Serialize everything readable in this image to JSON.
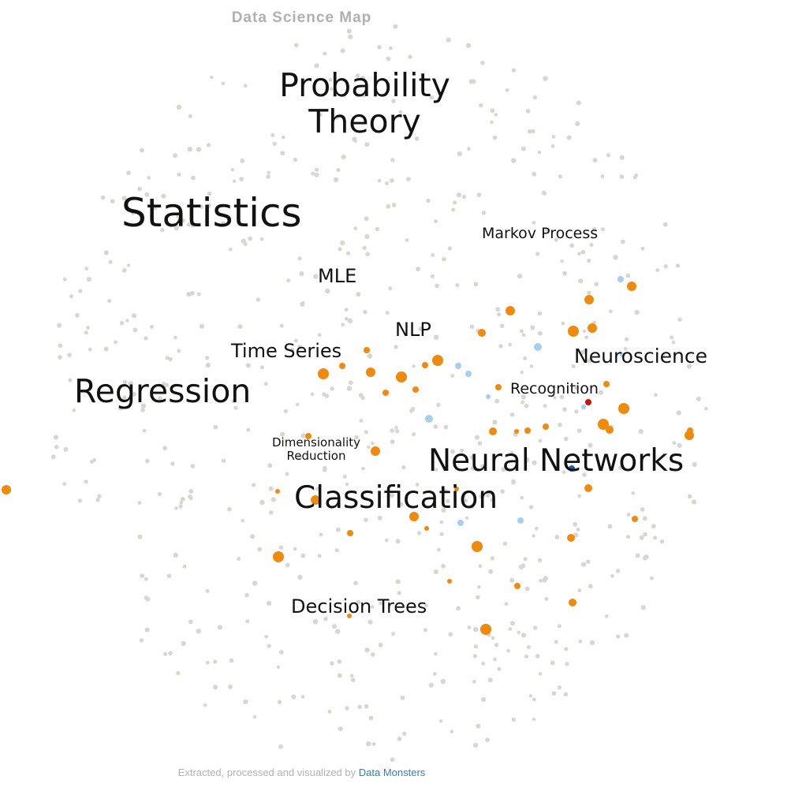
{
  "title": "Data Science Map",
  "footer": {
    "text": "Extracted, processed and visualized by",
    "brand": "Data Monsters"
  },
  "colors": {
    "background_point": "#d9d6d1",
    "highlight_orange": "#f08a0c",
    "highlight_blue": "#a6cfee",
    "dark_blue": "#1f5fa8",
    "red": "#cc1111",
    "title": "#b0b0b0",
    "brand": "#2f7fc1"
  },
  "labels": {
    "probability_theory": [
      "Probability",
      "Theory"
    ],
    "statistics": "Statistics",
    "markov_process": "Markov Process",
    "mle": "MLE",
    "nlp": "NLP",
    "time_series": "Time Series",
    "neuroscience": "Neuroscience",
    "recognition": "Recognition",
    "regression": "Regression",
    "dimensionality_reduction": [
      "Dimensionality",
      "Reduction"
    ],
    "neural_networks": "Neural Networks",
    "classification": "Classification",
    "decision_trees": "Decision Trees"
  }
}
